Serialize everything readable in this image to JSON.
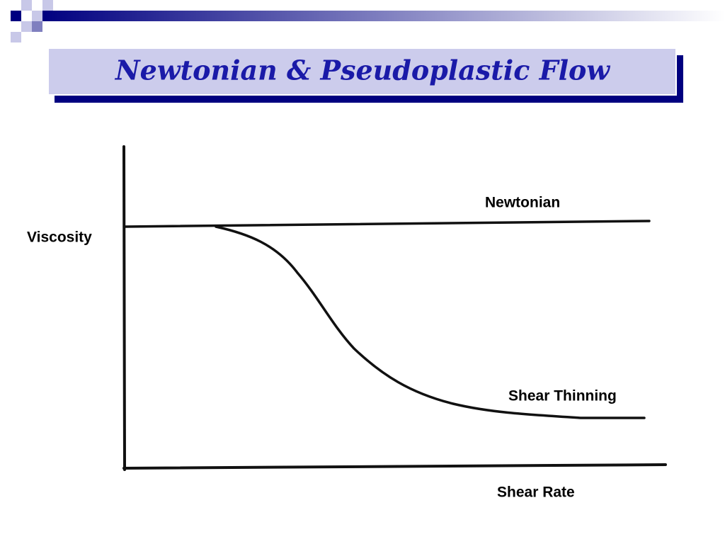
{
  "title": "Newtonian & Pseudoplastic Flow",
  "labels": {
    "newtonian": "Newtonian",
    "viscosity": "Viscosity",
    "shear_thinning": "Shear Thinning",
    "shear_rate": "Shear Rate"
  }
}
